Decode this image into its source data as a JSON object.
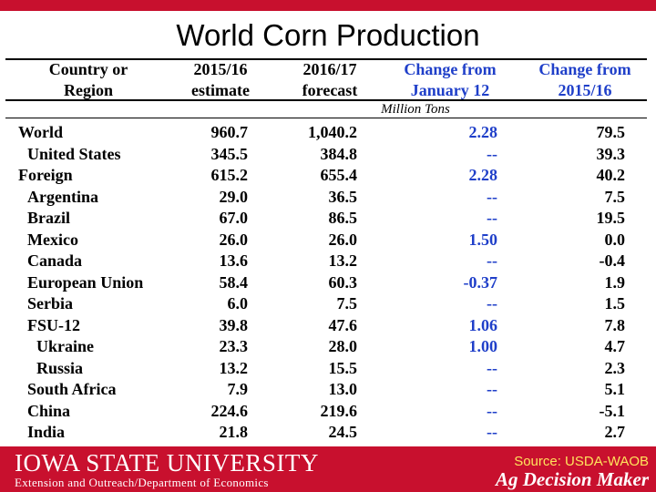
{
  "slide": {
    "title": "World Corn Production"
  },
  "table": {
    "headers": [
      {
        "line1": "Country or",
        "line2": "Region"
      },
      {
        "line1": "2015/16",
        "line2": "estimate"
      },
      {
        "line1": "2016/17",
        "line2": "forecast"
      },
      {
        "line1": "Change from",
        "line2": "January 12"
      },
      {
        "line1": "Change from",
        "line2": "2015/16"
      }
    ],
    "units": "Million Tons",
    "rows": [
      {
        "name": "World",
        "estimate": "960.7",
        "forecast": "1,040.2",
        "change_jan12": "2.28",
        "change_1516": "79.5"
      },
      {
        "name": "United States",
        "estimate": "345.5",
        "forecast": "384.8",
        "change_jan12": "--",
        "change_1516": "39.3"
      },
      {
        "name": "Foreign",
        "estimate": "615.2",
        "forecast": "655.4",
        "change_jan12": "2.28",
        "change_1516": "40.2"
      },
      {
        "name": "Argentina",
        "estimate": "29.0",
        "forecast": "36.5",
        "change_jan12": "--",
        "change_1516": "7.5"
      },
      {
        "name": "Brazil",
        "estimate": "67.0",
        "forecast": "86.5",
        "change_jan12": "--",
        "change_1516": "19.5"
      },
      {
        "name": "Mexico",
        "estimate": "26.0",
        "forecast": "26.0",
        "change_jan12": "1.50",
        "change_1516": "0.0"
      },
      {
        "name": "Canada",
        "estimate": "13.6",
        "forecast": "13.2",
        "change_jan12": "--",
        "change_1516": "-0.4"
      },
      {
        "name": "European Union",
        "estimate": "58.4",
        "forecast": "60.3",
        "change_jan12": "-0.37",
        "change_1516": "1.9"
      },
      {
        "name": "Serbia",
        "estimate": "6.0",
        "forecast": "7.5",
        "change_jan12": "--",
        "change_1516": "1.5"
      },
      {
        "name": "FSU-12",
        "estimate": "39.8",
        "forecast": "47.6",
        "change_jan12": "1.06",
        "change_1516": "7.8"
      },
      {
        "name": "Ukraine",
        "estimate": "23.3",
        "forecast": "28.0",
        "change_jan12": "1.00",
        "change_1516": "4.7"
      },
      {
        "name": "Russia",
        "estimate": "13.2",
        "forecast": "15.5",
        "change_jan12": "--",
        "change_1516": "2.3"
      },
      {
        "name": "South Africa",
        "estimate": "7.9",
        "forecast": "13.0",
        "change_jan12": "--",
        "change_1516": "5.1"
      },
      {
        "name": "China",
        "estimate": "224.6",
        "forecast": "219.6",
        "change_jan12": "--",
        "change_1516": "-5.1"
      },
      {
        "name": "India",
        "estimate": "21.8",
        "forecast": "24.5",
        "change_jan12": "--",
        "change_1516": "2.7"
      }
    ]
  },
  "footer": {
    "university": "IOWA STATE UNIVERSITY",
    "department": "Extension and Outreach/Department of Economics",
    "source": "Source: USDA-WAOB",
    "brand": "Ag Decision Maker"
  },
  "colors": {
    "accent_red": "#c8102e",
    "header_blue": "#1f3fc9",
    "source_yellow": "#ffe45c"
  }
}
